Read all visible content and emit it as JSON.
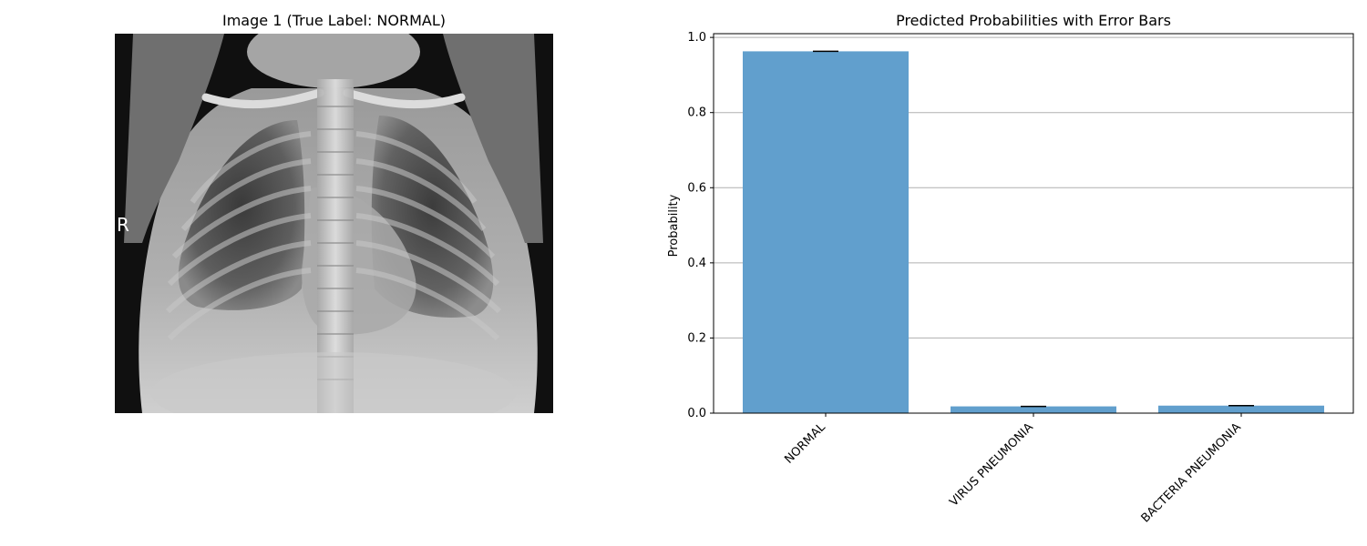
{
  "image_panel": {
    "title": "Image 1 (True Label: NORMAL)",
    "marker": "R"
  },
  "chart_data": {
    "type": "bar",
    "title": "Predicted Probabilities with Error Bars",
    "xlabel": "",
    "ylabel": "Probability",
    "categories": [
      "NORMAL",
      "VIRUS PNEUMONIA",
      "BACTERIA PNEUMONIA"
    ],
    "values": [
      0.963,
      0.018,
      0.02
    ],
    "errors": [
      0.001,
      0.001,
      0.001
    ],
    "ylim": [
      0,
      1.01
    ],
    "yticks": [
      0.0,
      0.2,
      0.4,
      0.6,
      0.8,
      1.0
    ],
    "grid": "y",
    "bar_color": "#619fcd"
  }
}
